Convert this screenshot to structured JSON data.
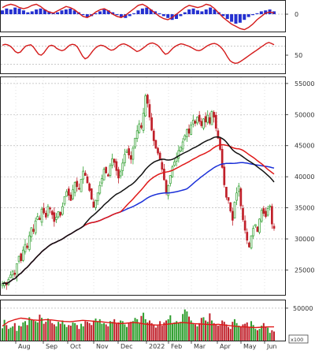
{
  "colors": {
    "up": "#2e9e2e",
    "down": "#c0202a",
    "ma_short": "#111111",
    "ma_mid": "#e01818",
    "ma_long": "#1a2fd8",
    "macd_hist": "#2430d0",
    "osc_line": "#d41a1a",
    "axis_text": "#333333",
    "grid": "#b8b8b8",
    "frame": "#222222"
  },
  "chart_data": [
    {
      "type": "bar",
      "panel": "macd",
      "yticks": [
        "0"
      ],
      "hist_shape": [
        0.4,
        0.6,
        0.5,
        0.7,
        0.6,
        0.4,
        0.2,
        0.3,
        0.5,
        0.6,
        0.5,
        0.3,
        0.1,
        0.2,
        0.4,
        0.5,
        0.6,
        0.4,
        0.2,
        -0.1,
        -0.3,
        -0.2,
        0.1,
        0.3,
        0.5,
        0.4,
        0.2,
        -0.1,
        -0.3,
        -0.4,
        -0.2,
        0.1,
        0.4,
        0.6,
        0.7,
        0.5,
        0.3,
        0.1,
        -0.2,
        -0.4,
        -0.6,
        -0.5,
        -0.2,
        0.2,
        0.5,
        0.6,
        0.4,
        0.3,
        0.5,
        0.7,
        0.5,
        0.2,
        -0.2,
        -0.5,
        -0.8,
        -1.0,
        -0.9,
        -0.6,
        -0.3,
        -0.1,
        0.1,
        0.3,
        0.4,
        0.5,
        0.3
      ],
      "line_shape": [
        0.6,
        0.8,
        0.9,
        0.8,
        0.6,
        0.5,
        0.6,
        0.8,
        0.9,
        0.7,
        0.4,
        0.2,
        0.1,
        0.3,
        0.5,
        0.7,
        0.6,
        0.4,
        0.1,
        -0.2,
        -0.3,
        -0.1,
        0.2,
        0.4,
        0.5,
        0.3,
        0.0,
        -0.2,
        -0.3,
        -0.1,
        0.2,
        0.5,
        0.8,
        0.9,
        0.7,
        0.4,
        0.1,
        -0.2,
        -0.4,
        -0.5,
        -0.3,
        0.0,
        0.3,
        0.6,
        0.8,
        0.7,
        0.6,
        0.7,
        0.9,
        0.8,
        0.5,
        0.1,
        -0.3,
        -0.6,
        -0.9,
        -1.1,
        -1.3,
        -1.4,
        -1.2,
        -0.9,
        -0.5,
        -0.2,
        0.1,
        0.2,
        0.1
      ]
    },
    {
      "type": "line",
      "panel": "oscillator",
      "yticks": [
        "50"
      ],
      "reference_levels": [
        70,
        30
      ],
      "ylim": [
        10,
        90
      ],
      "values": [
        72,
        74,
        73,
        70,
        65,
        58,
        55,
        57,
        64,
        70,
        72,
        73,
        68,
        60,
        52,
        50,
        55,
        63,
        70,
        72,
        70,
        65,
        62,
        60,
        62,
        67,
        72,
        74,
        73,
        68,
        58,
        48,
        42,
        45,
        52,
        60,
        66,
        70,
        72,
        71,
        68,
        64,
        61,
        62,
        66,
        71,
        74,
        75,
        73,
        70,
        66,
        62,
        58,
        60,
        64,
        68,
        73,
        76,
        77,
        75,
        72,
        66,
        58,
        52,
        54,
        60,
        66,
        70,
        73,
        75,
        74,
        72,
        70,
        67,
        64,
        61,
        60,
        62,
        66,
        70,
        73,
        75,
        76,
        74,
        70,
        64,
        56,
        46,
        38,
        34,
        32,
        33,
        36,
        40,
        44,
        48,
        52,
        56,
        60,
        64,
        68,
        72,
        76,
        78,
        76,
        73
      ]
    },
    {
      "type": "line",
      "panel": "price",
      "subtype": "candlestick",
      "yticks": [
        "25000",
        "30000",
        "35000",
        "40000",
        "45000",
        "50000",
        "55000"
      ],
      "ylim": [
        21000,
        56000
      ],
      "xlabels": [
        "Aug",
        "Sep",
        "Oct",
        "Nov",
        "Dec",
        "2022",
        "Feb",
        "Mar",
        "Apr",
        "May",
        "Jun"
      ],
      "close": [
        22800,
        23000,
        22600,
        23500,
        24200,
        24800,
        24300,
        26000,
        27200,
        26500,
        28200,
        29100,
        28600,
        30500,
        31800,
        31200,
        32900,
        33600,
        33100,
        34800,
        34200,
        33500,
        35200,
        34800,
        33900,
        32800,
        33500,
        34400,
        33800,
        35200,
        36800,
        37600,
        37000,
        36200,
        37900,
        39100,
        38400,
        38000,
        39600,
        40900,
        40200,
        39000,
        37800,
        36400,
        35100,
        36200,
        37400,
        38600,
        39700,
        41200,
        40600,
        40100,
        41800,
        42900,
        42300,
        41000,
        39800,
        40800,
        42200,
        43600,
        44100,
        43500,
        42800,
        44600,
        46200,
        47400,
        48500,
        47900,
        50200,
        53000,
        51800,
        49600,
        47500,
        45800,
        44600,
        43800,
        42700,
        41200,
        39500,
        37400,
        38600,
        40200,
        41600,
        42400,
        43100,
        44200,
        44800,
        45600,
        46600,
        47600,
        47000,
        48300,
        49100,
        48600,
        49600,
        48900,
        48200,
        49300,
        48800,
        49900,
        48600,
        50500,
        49600,
        47800,
        46200,
        44400,
        41500,
        38700,
        36700,
        36200,
        34500,
        33000,
        35900,
        37400,
        38500,
        35300,
        33100,
        31400,
        29800,
        28700,
        30500,
        31700,
        32300,
        31200,
        33200,
        34600,
        34100,
        33600,
        34900,
        35300,
        32400,
        31700
      ]
    },
    {
      "type": "bar",
      "panel": "volume",
      "yticks": [
        "50000"
      ],
      "ylim": [
        0,
        62000
      ],
      "values": [
        19000,
        32000,
        24000,
        18000,
        20000,
        22000,
        27000,
        15000,
        23000,
        22000,
        28000,
        30000,
        24000,
        36000,
        32000,
        31000,
        30000,
        28000,
        40000,
        35000,
        26000,
        29000,
        34000,
        31000,
        27000,
        25000,
        22000,
        29000,
        26000,
        31000,
        25000,
        21000,
        24000,
        23000,
        28000,
        27000,
        24000,
        18000,
        26000,
        22000,
        30000,
        29000,
        27000,
        24000,
        31000,
        34000,
        29000,
        33000,
        26000,
        27000,
        25000,
        22000,
        30000,
        29000,
        33000,
        26000,
        28000,
        31000,
        30000,
        25000,
        21000,
        28000,
        29000,
        30000,
        35000,
        33000,
        26000,
        38000,
        43000,
        33000,
        28000,
        31000,
        27000,
        24000,
        20000,
        23000,
        30000,
        23000,
        28000,
        31000,
        33000,
        39000,
        27000,
        28000,
        30000,
        27000,
        29000,
        41000,
        48000,
        45000,
        37000,
        31000,
        27000,
        25000,
        22000,
        27000,
        35000,
        36000,
        31000,
        29000,
        42000,
        31000,
        27000,
        25000,
        23000,
        24000,
        31000,
        29000,
        25000,
        21000,
        18000,
        29000,
        33000,
        27000,
        23000,
        21000,
        25000,
        26000,
        28000,
        20000,
        30000,
        24000,
        18000,
        16000,
        18000,
        23000,
        27000,
        21000,
        20000,
        12000,
        16000,
        14000
      ],
      "avg_shape": [
        0.4,
        0.52,
        0.58,
        0.62,
        0.6,
        0.57,
        0.56,
        0.58,
        0.57,
        0.55,
        0.53,
        0.52,
        0.54,
        0.56,
        0.55,
        0.53,
        0.52,
        0.5,
        0.49,
        0.47,
        0.48,
        0.5,
        0.49,
        0.46,
        0.44,
        0.43,
        0.44,
        0.46,
        0.48,
        0.5,
        0.49,
        0.47,
        0.46,
        0.45,
        0.44,
        0.45,
        0.43,
        0.41,
        0.39,
        0.38,
        0.37,
        0.36,
        0.37,
        0.38,
        0.38
      ],
      "unit_label": "x100"
    }
  ]
}
